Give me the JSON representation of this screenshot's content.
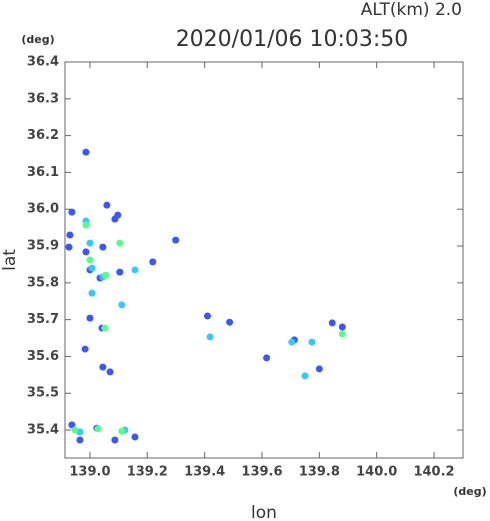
{
  "chart_data": {
    "type": "scatter",
    "title": "2020/01/06 10:03:50",
    "subtitle": "ALT(km) 2.0",
    "x_label": "lon",
    "y_label": "lat",
    "x_unit": "(deg)",
    "y_unit": "(deg)",
    "xlim": [
      138.913,
      140.301
    ],
    "ylim": [
      35.324,
      36.4
    ],
    "xticks": [
      {
        "value": 139,
        "label": "139.0"
      },
      139.2,
      139.4,
      139.6,
      139.8,
      {
        "value": 140,
        "label": "140.0"
      },
      140.2
    ],
    "yticks": [
      35.4,
      35.5,
      35.6,
      35.7,
      35.8,
      35.9,
      {
        "value": 36,
        "label": "36.0"
      },
      36.1,
      36.2,
      36.3,
      36.4
    ],
    "series": [
      {
        "color": "#3a56ff",
        "x": [
          138.986,
          138.93,
          138.927,
          138.986,
          139.0,
          139.035,
          139.104,
          139.087,
          139.097,
          139.059,
          139.045,
          138.983,
          139.045,
          139.07,
          139.0,
          139.042,
          139.219,
          139.299,
          139.41,
          139.487,
          139.616,
          139.713,
          139.8,
          139.845,
          139.88,
          138.937,
          138.965,
          139.087,
          139.024,
          139.157,
          138.937
        ],
        "y": [
          36.155,
          35.93,
          35.897,
          35.884,
          35.835,
          35.813,
          35.829,
          35.973,
          35.984,
          36.011,
          35.897,
          35.62,
          35.571,
          35.558,
          35.704,
          35.677,
          35.857,
          35.916,
          35.71,
          35.693,
          35.596,
          35.645,
          35.566,
          35.691,
          35.68,
          35.414,
          35.373,
          35.373,
          35.405,
          35.381,
          35.992
        ]
      },
      {
        "color": "#33c8ff",
        "x": [
          138.986,
          139.0,
          139.007,
          139.045,
          139.111,
          139.007,
          139.157,
          139.419,
          139.704,
          139.75,
          139.774,
          138.965,
          139.122
        ],
        "y": [
          35.968,
          35.908,
          35.84,
          35.816,
          35.74,
          35.772,
          35.835,
          35.653,
          35.639,
          35.547,
          35.639,
          35.395,
          35.4
        ]
      },
      {
        "color": "#55ff8a",
        "x": [
          138.986,
          139.0,
          139.055,
          139.104,
          139.052,
          138.948,
          139.028,
          139.111,
          139.88
        ],
        "y": [
          35.957,
          35.862,
          35.821,
          35.908,
          35.677,
          35.4,
          35.403,
          35.397,
          35.661
        ]
      }
    ]
  }
}
